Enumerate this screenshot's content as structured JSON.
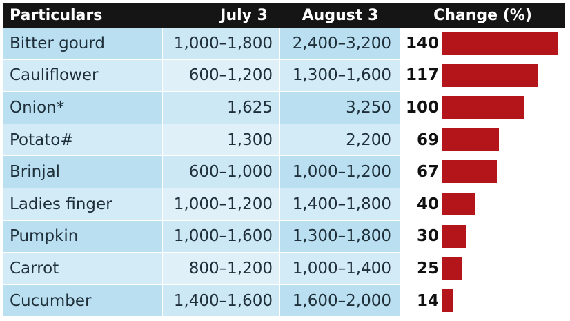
{
  "header": {
    "particulars": "Particulars",
    "july": "July 3",
    "august": "August 3",
    "change": "Change (%)"
  },
  "colors": {
    "header_bg": "#151515",
    "bar": "#b3151b",
    "row_light": "#d3ebf6",
    "row_dark": "#b9dff0"
  },
  "chart_data": {
    "type": "bar",
    "orientation": "horizontal",
    "title": "",
    "xlabel": "",
    "ylabel": "",
    "xlim": [
      0,
      140
    ],
    "categories": [
      "Bitter gourd",
      "Cauliflower",
      "Onion*",
      "Potato#",
      "Brinjal",
      "Ladies finger",
      "Pumpkin",
      "Carrot",
      "Cucumber"
    ],
    "series": [
      {
        "values": [
          140,
          117,
          100,
          69,
          67,
          40,
          30,
          25,
          14
        ]
      }
    ],
    "rows": [
      {
        "name": "Bitter gourd",
        "july": "1,000–1,800",
        "august": "2,400–3,200",
        "change": 140
      },
      {
        "name": "Cauliflower",
        "july": "600–1,200",
        "august": "1,300–1,600",
        "change": 117
      },
      {
        "name": "Onion*",
        "july": "1,625",
        "august": "3,250",
        "change": 100
      },
      {
        "name": "Potato#",
        "july": "1,300",
        "august": "2,200",
        "change": 69
      },
      {
        "name": "Brinjal",
        "july": "600–1,000",
        "august": "1,000–1,200",
        "change": 67
      },
      {
        "name": "Ladies finger",
        "july": "1,000–1,200",
        "august": "1,400–1,800",
        "change": 40
      },
      {
        "name": "Pumpkin",
        "july": "1,000–1,600",
        "august": "1,300–1,800",
        "change": 30
      },
      {
        "name": "Carrot",
        "july": "800–1,200",
        "august": "1,000–1,400",
        "change": 25
      },
      {
        "name": "Cucumber",
        "july": "1,400–1,600",
        "august": "1,600–2,000",
        "change": 14
      }
    ]
  }
}
